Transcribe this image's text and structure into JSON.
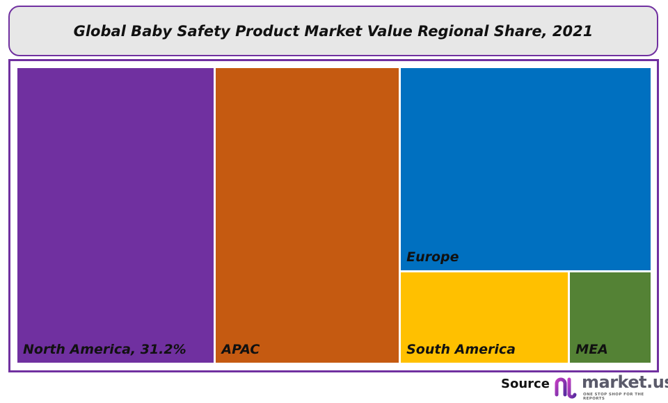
{
  "chart_data": {
    "type": "treemap",
    "title": "Global Baby Safety Product Market Value Regional Share, 2021",
    "unit": "%",
    "items": [
      {
        "name": "North America",
        "label": "North America, 31.2%",
        "value": 31.2,
        "color": "#7030a0"
      },
      {
        "name": "APAC",
        "label": "APAC",
        "value": 29.2,
        "color": "#c55a11"
      },
      {
        "name": "Europe",
        "label": "Europe",
        "value": 27.3,
        "color": "#0070c0"
      },
      {
        "name": "South America",
        "label": "South America",
        "value": 8.3,
        "color": "#ffc000"
      },
      {
        "name": "MEA",
        "label": "MEA",
        "value": 4.0,
        "color": "#548235"
      }
    ]
  },
  "footer": {
    "source_label": "Source",
    "logo_text": "market.us",
    "logo_tagline": "ONE STOP SHOP FOR THE REPORTS"
  }
}
